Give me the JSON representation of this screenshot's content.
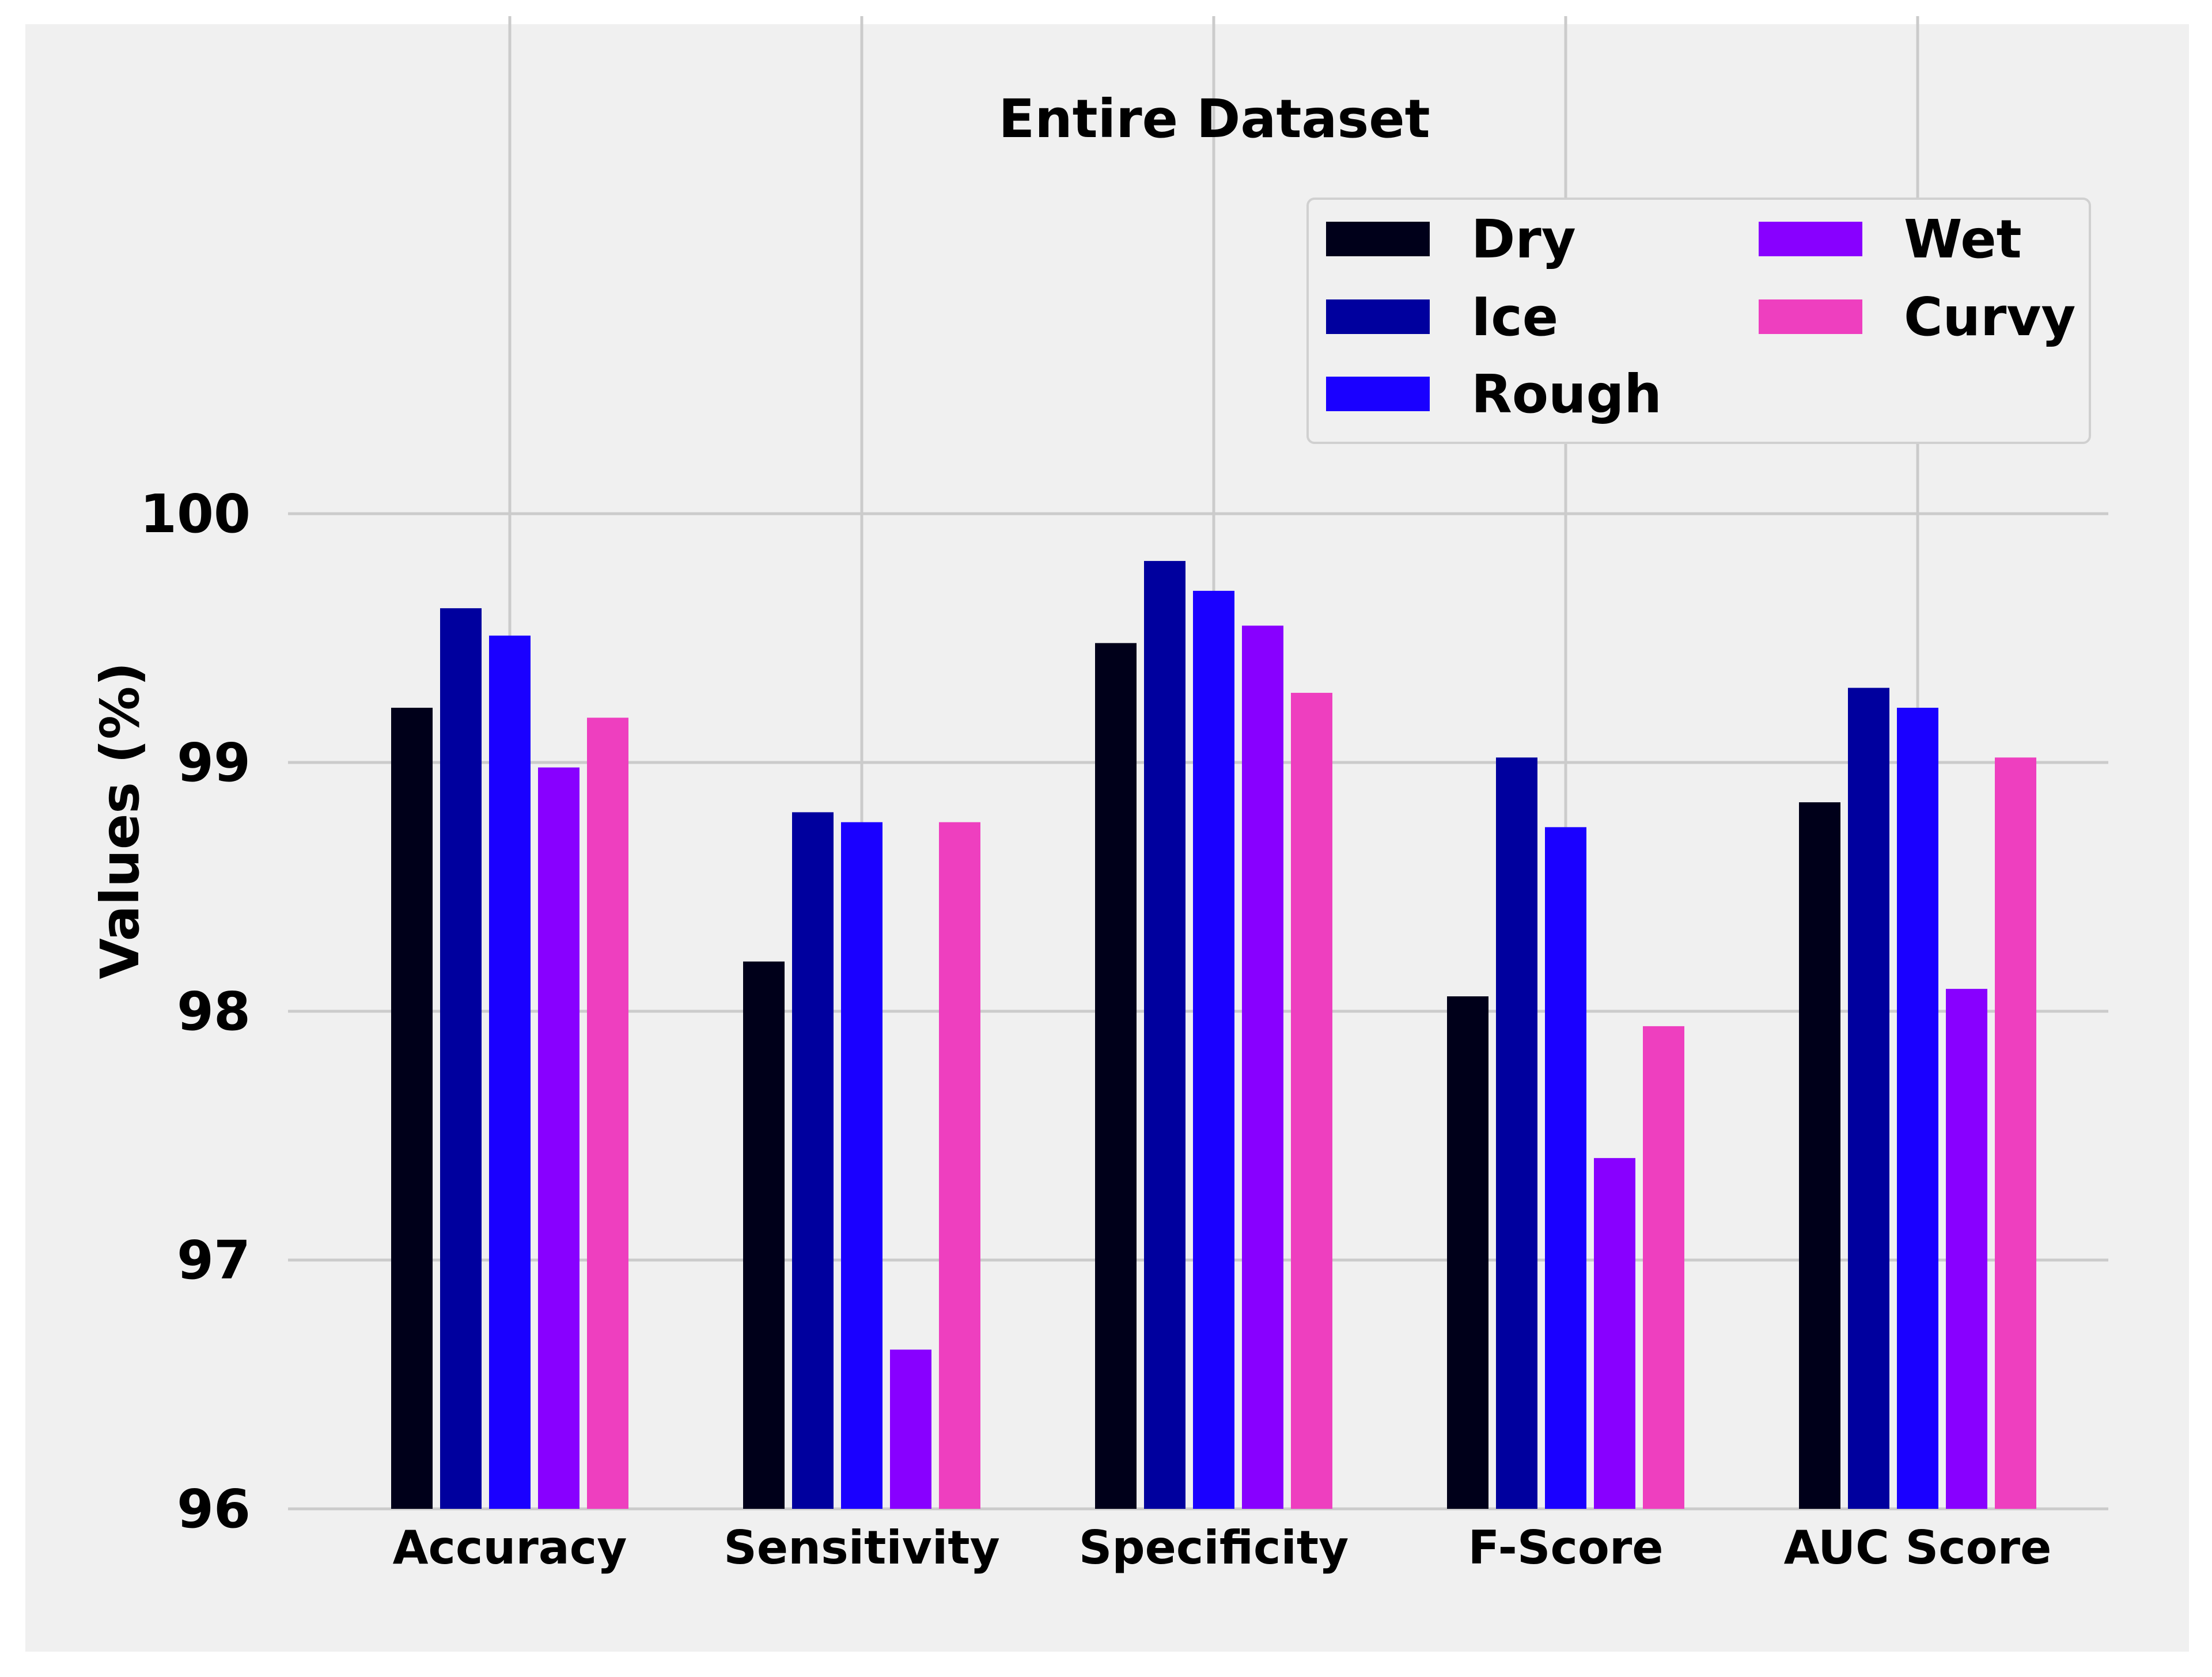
{
  "chart_data": {
    "type": "bar",
    "title": "Entire Dataset",
    "xlabel": "",
    "ylabel": "Values (%)",
    "categories": [
      "Accuracy",
      "Sensitivity",
      "Specificity",
      "F-Score",
      "AUC Score"
    ],
    "series": [
      {
        "name": "Dry",
        "color": "#00001a",
        "values": [
          99.22,
          98.2,
          99.48,
          98.06,
          98.84
        ]
      },
      {
        "name": "Ice",
        "color": "#00009e",
        "values": [
          99.62,
          98.8,
          99.81,
          99.02,
          99.3
        ]
      },
      {
        "name": "Rough",
        "color": "#1a00ff",
        "values": [
          99.51,
          98.76,
          99.69,
          98.74,
          99.22
        ]
      },
      {
        "name": "Wet",
        "color": "#8800ff",
        "values": [
          98.98,
          96.64,
          99.55,
          97.41,
          98.09
        ]
      },
      {
        "name": "Curvy",
        "color": "#ee3fbf",
        "values": [
          99.18,
          98.76,
          99.28,
          97.94,
          99.02
        ]
      }
    ],
    "ylim": [
      96,
      102
    ],
    "yticks": [
      96,
      97,
      98,
      99,
      100
    ],
    "grid": true,
    "legend": {
      "position": "top-right",
      "columns": 2
    }
  }
}
